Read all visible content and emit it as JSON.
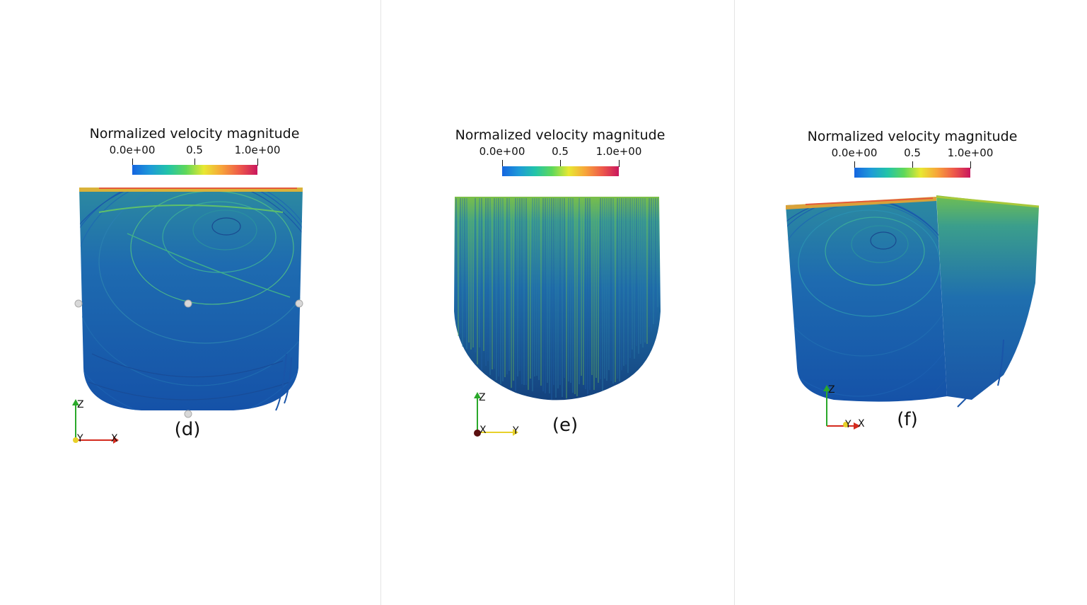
{
  "colors": {
    "colormap": [
      "#1565e0",
      "#1e9ad8",
      "#22c4a8",
      "#5fd85a",
      "#e8e832",
      "#f7a43a",
      "#ee5a4a",
      "#c9175e"
    ],
    "streamline_base": "#1a55a8",
    "streamline_mid": "#2c7fa8",
    "streamline_hot": "#8ccf45",
    "axis_x": "#d42b1e",
    "axis_y": "#e8d12a",
    "axis_z": "#2aa82a"
  },
  "panels": [
    {
      "id": "d",
      "colorbar": {
        "title": "Normalized velocity magnitude",
        "min_label": "0.0e+00",
        "mid_label": "0.5",
        "max_label": "1.0e+00"
      },
      "caption": "(d)",
      "axes": {
        "horizontal_label": "X",
        "depth_label": "Y",
        "vertical_label": "Z"
      }
    },
    {
      "id": "e",
      "colorbar": {
        "title": "Normalized velocity magnitude",
        "min_label": "0.0e+00",
        "mid_label": "0.5",
        "max_label": "1.0e+00"
      },
      "caption": "(e)",
      "axes": {
        "horizontal_label": "Y",
        "depth_label": "X",
        "vertical_label": "Z"
      }
    },
    {
      "id": "f",
      "colorbar": {
        "title": "Normalized velocity magnitude",
        "min_label": "0.0e+00",
        "mid_label": "0.5",
        "max_label": "1.0e+00"
      },
      "caption": "(f)",
      "axes": {
        "horizontal_label": "X",
        "depth_label": "Y",
        "vertical_label": "Z"
      }
    }
  ]
}
